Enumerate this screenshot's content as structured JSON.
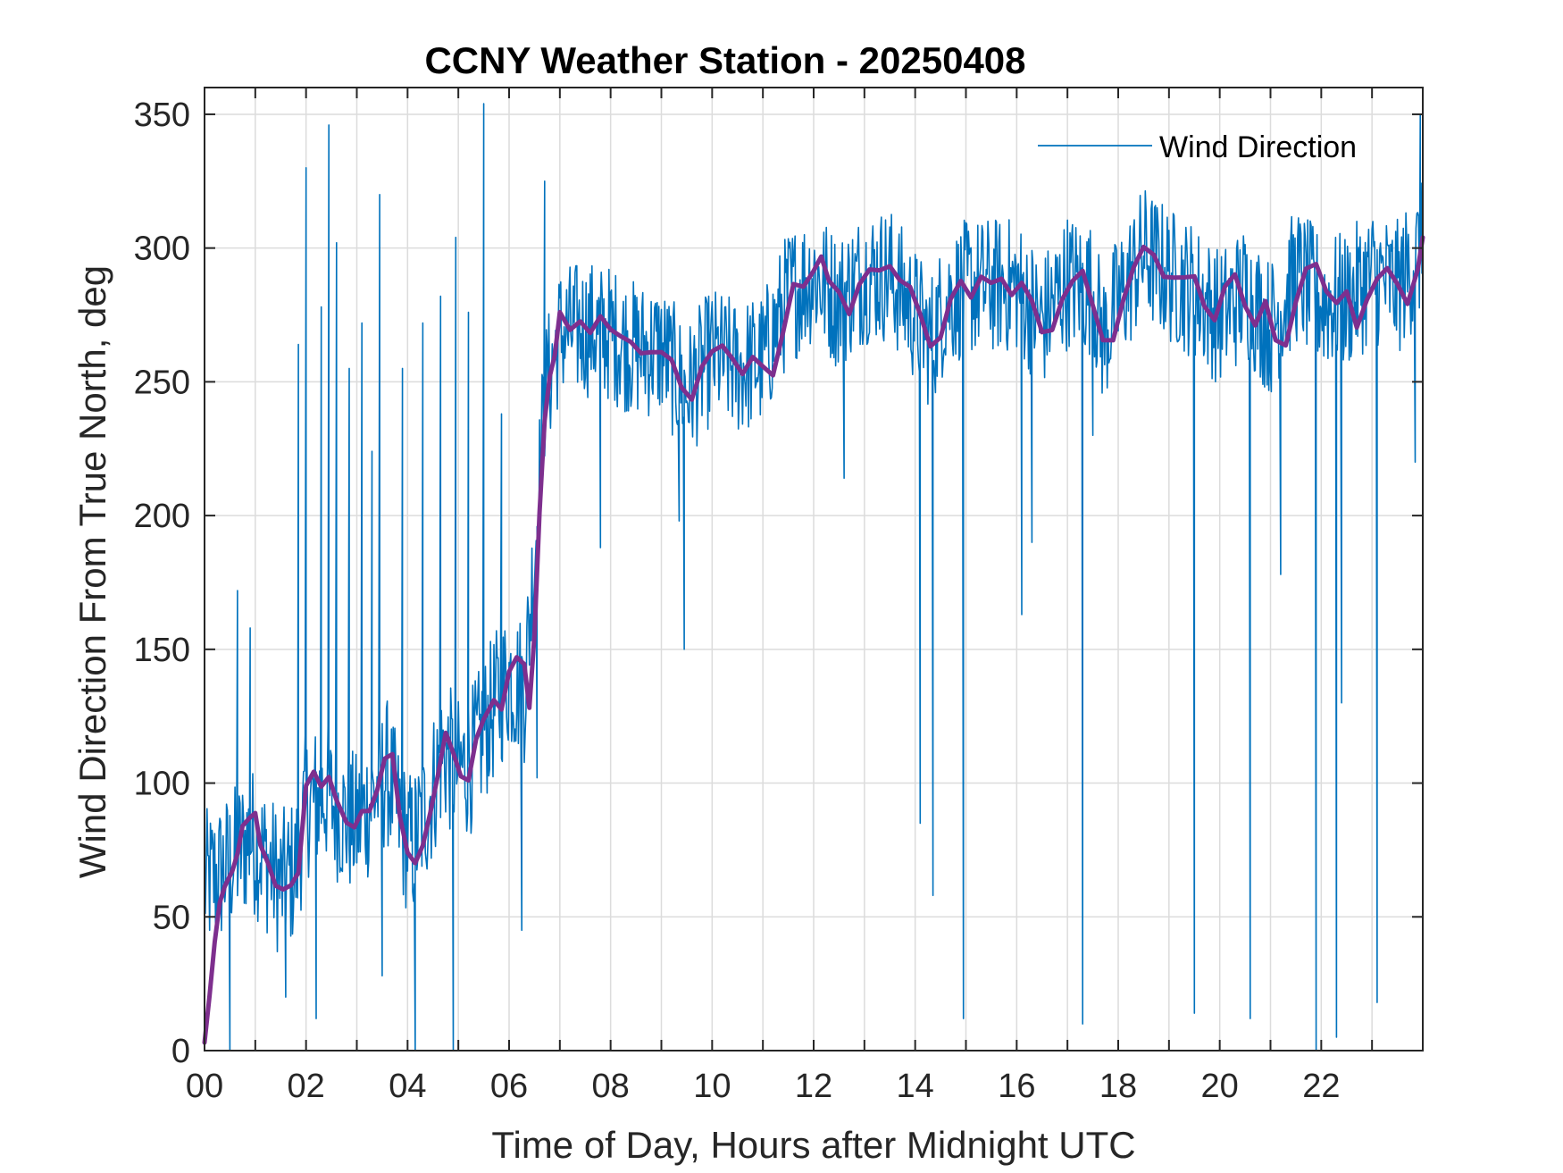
{
  "chart_data": {
    "type": "line",
    "title": "CCNY Weather Station - 20250408",
    "xlabel": "Time of Day, Hours after Midnight UTC",
    "ylabel": "Wind Direction From True North, deg",
    "xlim": [
      0,
      24
    ],
    "ylim": [
      0,
      360
    ],
    "x_ticks": [
      0,
      2,
      4,
      6,
      8,
      10,
      12,
      14,
      16,
      18,
      20,
      22
    ],
    "x_tick_labels": [
      "00",
      "02",
      "04",
      "06",
      "08",
      "10",
      "12",
      "14",
      "16",
      "18",
      "20",
      "22"
    ],
    "y_ticks": [
      0,
      50,
      100,
      150,
      200,
      250,
      300,
      350
    ],
    "y_tick_labels": [
      "0",
      "50",
      "100",
      "150",
      "200",
      "250",
      "300",
      "350"
    ],
    "grid": true,
    "legend_position": "top-right",
    "series": [
      {
        "name": "Wind Direction",
        "color": "#0072BD",
        "style": "thin-noisy",
        "trend": [
          [
            0,
            62
          ],
          [
            0.3,
            66
          ],
          [
            0.6,
            72
          ],
          [
            0.9,
            80
          ],
          [
            1.2,
            72
          ],
          [
            1.5,
            62
          ],
          [
            1.8,
            68
          ],
          [
            2.0,
            92
          ],
          [
            2.4,
            96
          ],
          [
            2.8,
            86
          ],
          [
            3.0,
            84
          ],
          [
            3.3,
            94
          ],
          [
            3.6,
            104
          ],
          [
            3.9,
            82
          ],
          [
            4.1,
            76
          ],
          [
            4.4,
            92
          ],
          [
            4.7,
            112
          ],
          [
            5.0,
            104
          ],
          [
            5.3,
            110
          ],
          [
            5.6,
            124
          ],
          [
            6.0,
            140
          ],
          [
            6.3,
            135
          ],
          [
            6.5,
            185
          ],
          [
            6.7,
            245
          ],
          [
            7.0,
            268
          ],
          [
            7.5,
            270
          ],
          [
            8.0,
            268
          ],
          [
            8.5,
            262
          ],
          [
            9.0,
            262
          ],
          [
            9.5,
            246
          ],
          [
            10.0,
            260
          ],
          [
            10.5,
            255
          ],
          [
            11.0,
            258
          ],
          [
            11.5,
            282
          ],
          [
            12.0,
            290
          ],
          [
            12.5,
            280
          ],
          [
            13.0,
            290
          ],
          [
            13.5,
            290
          ],
          [
            14.0,
            275
          ],
          [
            14.3,
            265
          ],
          [
            14.6,
            280
          ],
          [
            15.0,
            285
          ],
          [
            15.5,
            286
          ],
          [
            16.0,
            286
          ],
          [
            16.5,
            272
          ],
          [
            17.0,
            288
          ],
          [
            17.5,
            284
          ],
          [
            17.7,
            266
          ],
          [
            18.0,
            280
          ],
          [
            18.5,
            298
          ],
          [
            19.0,
            290
          ],
          [
            19.5,
            284
          ],
          [
            20.0,
            274
          ],
          [
            20.5,
            284
          ],
          [
            21.0,
            270
          ],
          [
            21.5,
            290
          ],
          [
            22.0,
            280
          ],
          [
            22.5,
            280
          ],
          [
            23.0,
            290
          ],
          [
            23.5,
            285
          ],
          [
            24.0,
            300
          ]
        ],
        "spikes": [
          [
            0.5,
            0
          ],
          [
            0.65,
            172
          ],
          [
            0.9,
            158
          ],
          [
            1.6,
            20
          ],
          [
            1.85,
            264
          ],
          [
            2.0,
            330
          ],
          [
            2.2,
            12
          ],
          [
            2.3,
            278
          ],
          [
            2.45,
            346
          ],
          [
            2.6,
            302
          ],
          [
            2.85,
            255
          ],
          [
            3.1,
            272
          ],
          [
            3.3,
            224
          ],
          [
            3.45,
            320
          ],
          [
            3.5,
            28
          ],
          [
            3.9,
            255
          ],
          [
            4.15,
            0
          ],
          [
            4.3,
            272
          ],
          [
            4.65,
            282
          ],
          [
            4.9,
            0
          ],
          [
            4.95,
            304
          ],
          [
            5.2,
            276
          ],
          [
            5.5,
            354
          ],
          [
            5.85,
            238
          ],
          [
            6.25,
            45
          ],
          [
            6.55,
            102
          ],
          [
            6.7,
            325
          ],
          [
            7.8,
            188
          ],
          [
            9.45,
            150
          ],
          [
            9.35,
            198
          ],
          [
            12.6,
            214
          ],
          [
            14.1,
            85
          ],
          [
            14.35,
            58
          ],
          [
            14.95,
            12
          ],
          [
            16.1,
            163
          ],
          [
            16.3,
            190
          ],
          [
            17.3,
            10
          ],
          [
            17.5,
            230
          ],
          [
            19.5,
            14
          ],
          [
            20.6,
            12
          ],
          [
            21.2,
            178
          ],
          [
            21.9,
            0
          ],
          [
            22.3,
            5
          ],
          [
            22.4,
            130
          ],
          [
            23.1,
            18
          ],
          [
            23.85,
            220
          ],
          [
            23.95,
            350
          ]
        ]
      },
      {
        "name": "",
        "color": "#7E2F8E",
        "style": "thick-smoothed",
        "points": [
          [
            0,
            3
          ],
          [
            0.1,
            20
          ],
          [
            0.2,
            40
          ],
          [
            0.3,
            55
          ],
          [
            0.4,
            62
          ],
          [
            0.55,
            66
          ],
          [
            0.65,
            72
          ],
          [
            0.75,
            82
          ],
          [
            0.9,
            86
          ],
          [
            1.0,
            88
          ],
          [
            1.1,
            76
          ],
          [
            1.25,
            70
          ],
          [
            1.4,
            62
          ],
          [
            1.55,
            60
          ],
          [
            1.7,
            62
          ],
          [
            1.85,
            66
          ],
          [
            2.0,
            100
          ],
          [
            2.15,
            104
          ],
          [
            2.3,
            98
          ],
          [
            2.45,
            102
          ],
          [
            2.6,
            94
          ],
          [
            2.8,
            86
          ],
          [
            2.95,
            82
          ],
          [
            3.1,
            90
          ],
          [
            3.25,
            88
          ],
          [
            3.4,
            96
          ],
          [
            3.55,
            108
          ],
          [
            3.7,
            110
          ],
          [
            3.85,
            88
          ],
          [
            4.0,
            76
          ],
          [
            4.15,
            72
          ],
          [
            4.3,
            78
          ],
          [
            4.45,
            90
          ],
          [
            4.6,
            104
          ],
          [
            4.75,
            118
          ],
          [
            4.9,
            112
          ],
          [
            5.05,
            104
          ],
          [
            5.2,
            100
          ],
          [
            5.35,
            116
          ],
          [
            5.5,
            124
          ],
          [
            5.7,
            132
          ],
          [
            5.85,
            128
          ],
          [
            6.0,
            140
          ],
          [
            6.15,
            148
          ],
          [
            6.3,
            144
          ],
          [
            6.4,
            128
          ],
          [
            6.5,
            156
          ],
          [
            6.6,
            200
          ],
          [
            6.7,
            236
          ],
          [
            6.8,
            250
          ],
          [
            6.9,
            262
          ],
          [
            7.0,
            275
          ],
          [
            7.2,
            270
          ],
          [
            7.4,
            272
          ],
          [
            7.6,
            270
          ],
          [
            7.8,
            274
          ],
          [
            8.0,
            270
          ],
          [
            8.2,
            268
          ],
          [
            8.4,
            266
          ],
          [
            8.6,
            262
          ],
          [
            8.8,
            260
          ],
          [
            9.0,
            262
          ],
          [
            9.2,
            258
          ],
          [
            9.4,
            246
          ],
          [
            9.6,
            244
          ],
          [
            9.8,
            254
          ],
          [
            10.0,
            262
          ],
          [
            10.2,
            264
          ],
          [
            10.4,
            258
          ],
          [
            10.6,
            254
          ],
          [
            10.8,
            258
          ],
          [
            11.0,
            256
          ],
          [
            11.2,
            254
          ],
          [
            11.4,
            270
          ],
          [
            11.6,
            288
          ],
          [
            11.8,
            286
          ],
          [
            12.0,
            290
          ],
          [
            12.15,
            298
          ],
          [
            12.3,
            288
          ],
          [
            12.5,
            282
          ],
          [
            12.7,
            276
          ],
          [
            12.9,
            288
          ],
          [
            13.1,
            294
          ],
          [
            13.3,
            290
          ],
          [
            13.5,
            294
          ],
          [
            13.7,
            286
          ],
          [
            13.9,
            284
          ],
          [
            14.1,
            276
          ],
          [
            14.3,
            262
          ],
          [
            14.5,
            268
          ],
          [
            14.7,
            280
          ],
          [
            14.9,
            288
          ],
          [
            15.1,
            282
          ],
          [
            15.3,
            290
          ],
          [
            15.5,
            286
          ],
          [
            15.7,
            290
          ],
          [
            15.9,
            284
          ],
          [
            16.1,
            288
          ],
          [
            16.3,
            282
          ],
          [
            16.5,
            270
          ],
          [
            16.7,
            268
          ],
          [
            16.9,
            280
          ],
          [
            17.1,
            288
          ],
          [
            17.3,
            292
          ],
          [
            17.5,
            280
          ],
          [
            17.7,
            264
          ],
          [
            17.9,
            266
          ],
          [
            18.1,
            282
          ],
          [
            18.3,
            292
          ],
          [
            18.5,
            302
          ],
          [
            18.7,
            296
          ],
          [
            18.9,
            290
          ],
          [
            19.1,
            290
          ],
          [
            19.3,
            288
          ],
          [
            19.5,
            290
          ],
          [
            19.7,
            280
          ],
          [
            19.9,
            272
          ],
          [
            20.1,
            284
          ],
          [
            20.3,
            292
          ],
          [
            20.5,
            278
          ],
          [
            20.7,
            272
          ],
          [
            20.9,
            280
          ],
          [
            21.1,
            266
          ],
          [
            21.3,
            262
          ],
          [
            21.5,
            280
          ],
          [
            21.7,
            292
          ],
          [
            21.9,
            296
          ],
          [
            22.1,
            284
          ],
          [
            22.3,
            278
          ],
          [
            22.5,
            282
          ],
          [
            22.7,
            272
          ],
          [
            22.9,
            282
          ],
          [
            23.1,
            290
          ],
          [
            23.3,
            294
          ],
          [
            23.5,
            288
          ],
          [
            23.7,
            280
          ],
          [
            23.9,
            290
          ],
          [
            24.0,
            304
          ]
        ]
      }
    ]
  }
}
